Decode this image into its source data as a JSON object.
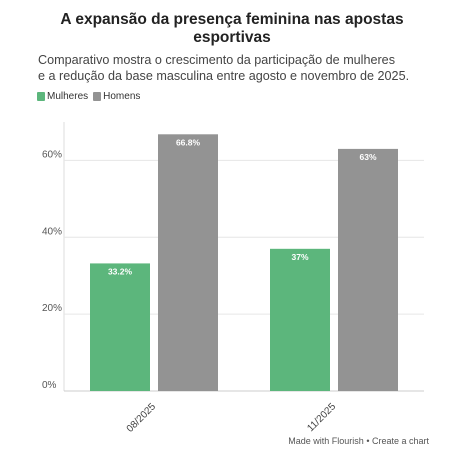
{
  "title_lines": [
    "A expansão da presença feminina nas apostas",
    "esportivas"
  ],
  "subtitle_lines": [
    "Comparativo mostra o crescimento da participação de mulheres",
    "e a redução da base masculina entre agosto e novembro de 2025."
  ],
  "legend": [
    {
      "label": "Mulheres",
      "color": "#5cb67c"
    },
    {
      "label": "Homens",
      "color": "#939393"
    }
  ],
  "footer": {
    "made_with": "Made with Flourish",
    "separator": " • ",
    "create": "Create a chart"
  },
  "chart_data": {
    "type": "bar",
    "categories": [
      "08/2025",
      "11/2025"
    ],
    "series": [
      {
        "name": "Mulheres",
        "color": "#5cb67c",
        "values": [
          33.2,
          37
        ],
        "labels": [
          "33.2%",
          "37%"
        ]
      },
      {
        "name": "Homens",
        "color": "#939393",
        "values": [
          66.8,
          63
        ],
        "labels": [
          "66.8%",
          "63%"
        ]
      }
    ],
    "ylim": [
      0,
      70
    ],
    "yticks": [
      0,
      20,
      40,
      60
    ],
    "ytick_labels": [
      "0%",
      "20%",
      "40%",
      "60%"
    ],
    "xlabel": "",
    "ylabel": "",
    "grid": true,
    "legend_position": "top-left"
  }
}
